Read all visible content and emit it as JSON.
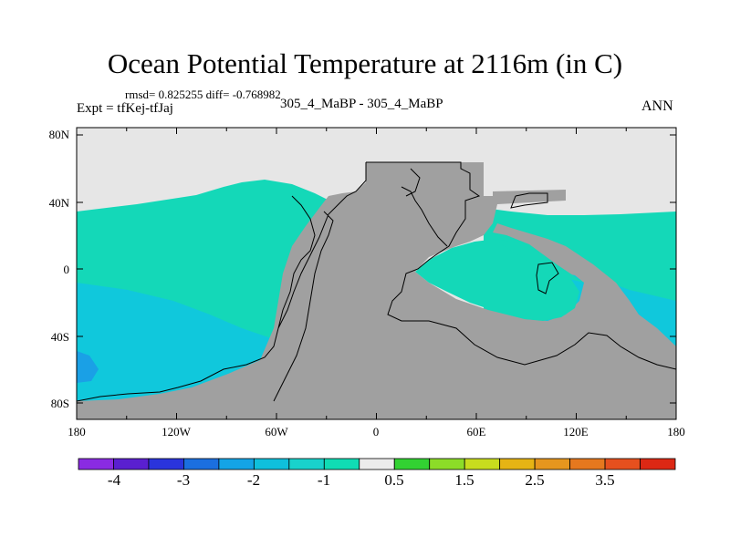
{
  "title": "Ocean Potential Temperature at 2116m (in C)",
  "stats": "rmsd= 0.825255  diff= -0.768982",
  "experiment": "Expt = tfKej-tfJaj",
  "subtitle": "305_4_MaBP - 305_4_MaBP",
  "season": "ANN",
  "map": {
    "lat_ticks": [
      "80N",
      "40N",
      "0",
      "40S",
      "80S"
    ],
    "lon_ticks": [
      "180",
      "120W",
      "60W",
      "0",
      "60E",
      "120E",
      "180"
    ],
    "land_color": "#a0a0a0",
    "ice_color": "#e5e5e5"
  },
  "colorbar": {
    "labels": [
      "-4",
      "-3",
      "-2",
      "-1",
      "0.5",
      "1.5",
      "2.5",
      "3.5"
    ],
    "colors": [
      "#8a2be2",
      "#5a1fd0",
      "#2a34dc",
      "#1b6fe0",
      "#14a4e6",
      "#0fc0dc",
      "#19d2cc",
      "#10dcb4",
      "#ececec",
      "#32d232",
      "#8cdc28",
      "#c8dc1e",
      "#e6b414",
      "#e6961e",
      "#e6781e",
      "#e6501e",
      "#dc2814"
    ]
  }
}
